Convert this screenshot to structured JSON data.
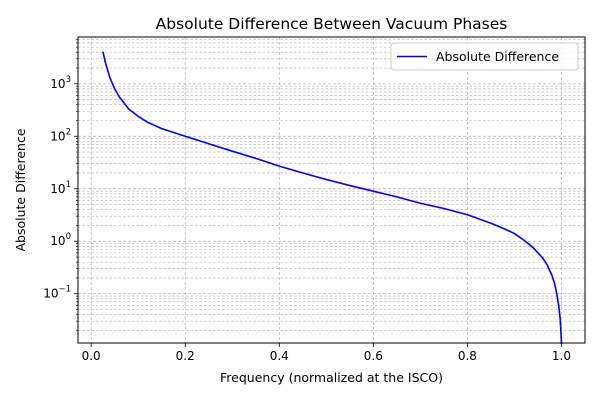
{
  "chart_data": {
    "type": "line",
    "title": "Absolute Difference Between Vacuum Phases",
    "xlabel": "Frequency (normalized at the ISCO)",
    "ylabel": "Absolute Difference",
    "xlim": [
      -0.028,
      1.05
    ],
    "ylim": [
      0.0115,
      7800
    ],
    "yscale": "log",
    "grid": true,
    "legend_placement": "top-right",
    "x_ticks": [
      0.0,
      0.2,
      0.4,
      0.6,
      0.8,
      1.0
    ],
    "x_tick_labels": [
      "0.0",
      "0.2",
      "0.4",
      "0.6",
      "0.8",
      "1.0"
    ],
    "y_ticks": [
      {
        "value": 0.1,
        "base": "10",
        "exp": "−1"
      },
      {
        "value": 1,
        "base": "10",
        "exp": "0"
      },
      {
        "value": 10,
        "base": "10",
        "exp": "1"
      },
      {
        "value": 100,
        "base": "10",
        "exp": "2"
      },
      {
        "value": 1000,
        "base": "10",
        "exp": "3"
      }
    ],
    "series": [
      {
        "name": "Absolute Difference",
        "color": "#0000ff",
        "x": [
          0.025,
          0.03,
          0.04,
          0.05,
          0.06,
          0.08,
          0.1,
          0.12,
          0.15,
          0.2,
          0.25,
          0.3,
          0.35,
          0.4,
          0.45,
          0.5,
          0.55,
          0.6,
          0.65,
          0.7,
          0.75,
          0.8,
          0.85,
          0.88,
          0.9,
          0.92,
          0.94,
          0.96,
          0.97,
          0.98,
          0.985,
          0.99,
          0.994,
          0.997,
          0.999,
          1.0
        ],
        "y": [
          4100,
          2600,
          1300,
          800,
          560,
          330,
          240,
          185,
          140,
          100,
          72,
          52,
          38,
          27,
          20,
          15,
          11.5,
          9,
          7,
          5.3,
          4.2,
          3.2,
          2.2,
          1.7,
          1.4,
          1.05,
          0.75,
          0.48,
          0.35,
          0.22,
          0.16,
          0.1,
          0.06,
          0.035,
          0.018,
          0.011
        ]
      }
    ]
  }
}
